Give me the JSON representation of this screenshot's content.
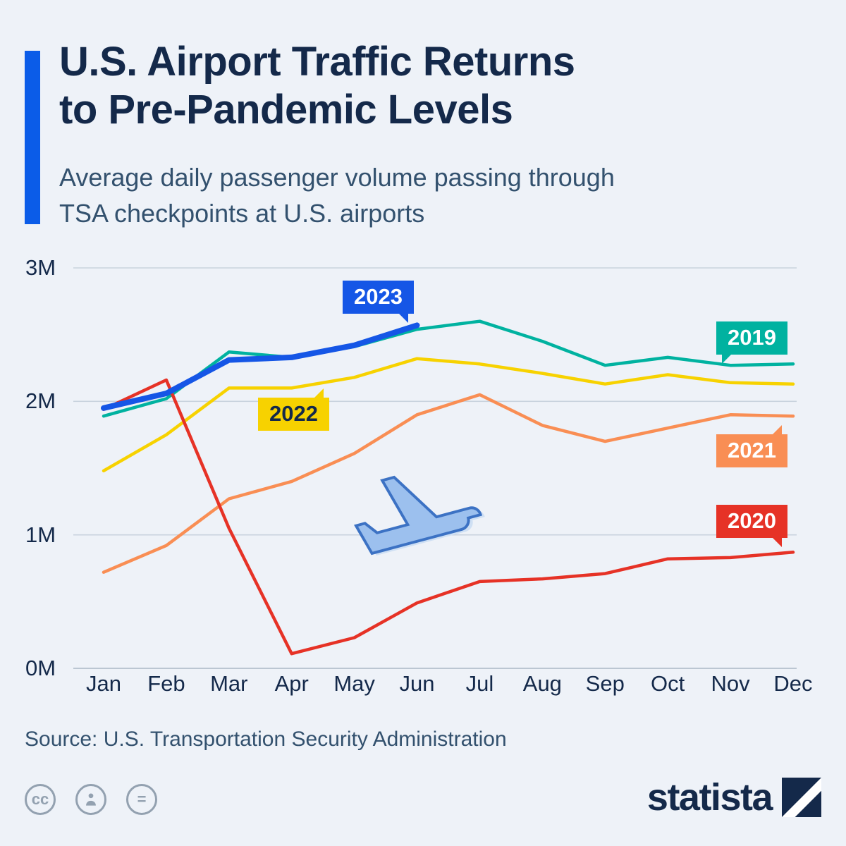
{
  "header": {
    "title_line1": "U.S. Airport Traffic Returns",
    "title_line2": "to Pre-Pandemic Levels",
    "subtitle_line1": "Average daily passenger volume passing through",
    "subtitle_line2": "TSA checkpoints at U.S. airports",
    "accent_color": "#0b5ce8"
  },
  "chart_data": {
    "type": "line",
    "title": "Average daily passenger volume passing through TSA checkpoints at U.S. airports",
    "categories": [
      "Jan",
      "Feb",
      "Mar",
      "Apr",
      "May",
      "Jun",
      "Jul",
      "Aug",
      "Sep",
      "Oct",
      "Nov",
      "Dec"
    ],
    "xlabel": "",
    "ylabel": "",
    "ylim": [
      0,
      3
    ],
    "unit": "millions of passengers per day",
    "grid": "horizontal",
    "legend": "inline-flag-labels",
    "y_ticks": [
      {
        "label": "3M",
        "value": 3
      },
      {
        "label": "2M",
        "value": 2
      },
      {
        "label": "1M",
        "value": 1
      },
      {
        "label": "0M",
        "value": 0
      }
    ],
    "series": [
      {
        "name": "2019",
        "color": "#00b2a0",
        "line_width": 4.5,
        "z": 3,
        "values": [
          1.89,
          2.02,
          2.37,
          2.33,
          2.41,
          2.54,
          2.6,
          2.45,
          2.27,
          2.33,
          2.27,
          2.28
        ]
      },
      {
        "name": "2020",
        "color": "#e63226",
        "line_width": 4.5,
        "z": 4,
        "values": [
          1.94,
          2.16,
          1.05,
          0.11,
          0.23,
          0.49,
          0.65,
          0.67,
          0.71,
          0.82,
          0.83,
          0.87
        ]
      },
      {
        "name": "2021",
        "color": "#f98e54",
        "line_width": 4.5,
        "z": 1,
        "values": [
          0.72,
          0.92,
          1.27,
          1.4,
          1.61,
          1.9,
          2.05,
          1.82,
          1.7,
          1.8,
          1.9,
          1.89
        ]
      },
      {
        "name": "2022",
        "color": "#f7d200",
        "line_width": 4.5,
        "z": 2,
        "values": [
          1.48,
          1.75,
          2.1,
          2.1,
          2.18,
          2.32,
          2.28,
          2.21,
          2.13,
          2.2,
          2.14,
          2.13
        ]
      },
      {
        "name": "2023",
        "color": "#1556e6",
        "line_width": 8,
        "z": 5,
        "values": [
          1.95,
          2.06,
          2.31,
          2.33,
          2.42,
          2.57,
          null,
          null,
          null,
          null,
          null,
          null
        ]
      }
    ]
  },
  "source": "Source: U.S. Transportation Security Administration",
  "footer": {
    "cc_label": "cc",
    "equal_label": "=",
    "brand": "statista"
  }
}
